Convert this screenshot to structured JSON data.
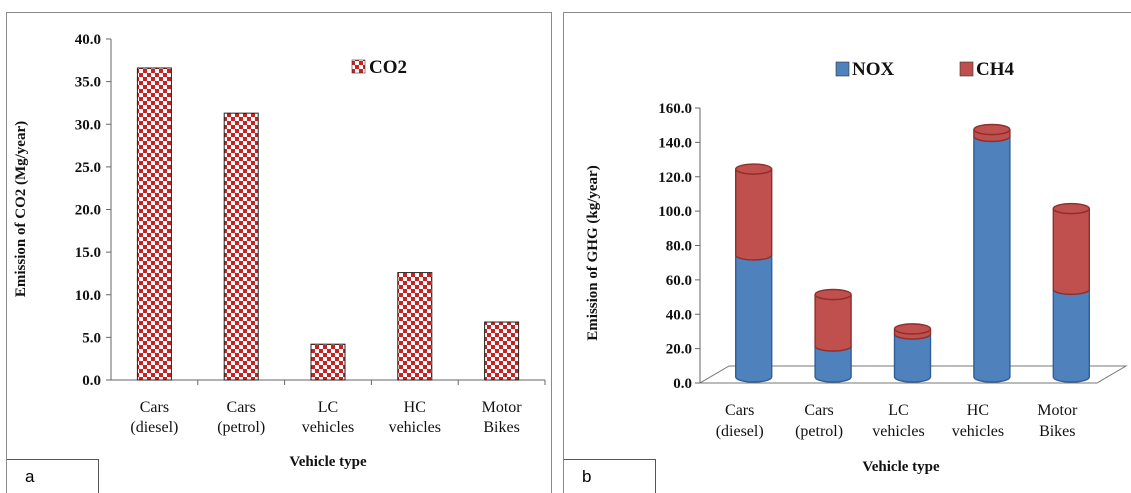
{
  "colors": {
    "co2_check": "#cc1f1f",
    "nox": "#4f81bd",
    "nox_dark": "#2f5f96",
    "ch4": "#c0504d",
    "ch4_dark": "#8e2f2c"
  },
  "panels": {
    "a": {
      "label": "a"
    },
    "b": {
      "label": "b"
    }
  },
  "chart_data": [
    {
      "type": "bar",
      "categories": [
        [
          "Cars",
          "(diesel)"
        ],
        [
          "Cars",
          "(petrol)"
        ],
        [
          "LC",
          "vehicles"
        ],
        [
          "HC",
          "vehicles"
        ],
        [
          "Motor",
          "Bikes"
        ]
      ],
      "series": [
        {
          "name": "CO2",
          "values": [
            36.6,
            31.3,
            4.2,
            12.6,
            6.8
          ]
        }
      ],
      "xlabel": "Vehicle type",
      "ylabel": "Emission of CO2 (Mg/year)",
      "ylim": [
        0,
        40
      ],
      "yticks": [
        "0.0",
        "5.0",
        "10.0",
        "15.0",
        "20.0",
        "25.0",
        "30.0",
        "35.0",
        "40.0"
      ],
      "grid": false,
      "legend": "top-right"
    },
    {
      "type": "bar",
      "stacked": true,
      "style": "3d-cylinder",
      "categories": [
        [
          "Cars",
          "(diesel)"
        ],
        [
          "Cars",
          "(petrol)"
        ],
        [
          "LC",
          "vehicles"
        ],
        [
          "HC",
          "vehicles"
        ],
        [
          "Motor",
          "Bikes"
        ]
      ],
      "series": [
        {
          "name": "NOX",
          "values": [
            71,
            18,
            25,
            140,
            51
          ]
        },
        {
          "name": "CH4",
          "values": [
            50,
            30,
            3,
            4,
            47
          ]
        }
      ],
      "xlabel": "Vehicle type",
      "ylabel": "Emission of GHG (kg/year)",
      "ylim": [
        0,
        160
      ],
      "yticks": [
        "0.0",
        "20.0",
        "40.0",
        "60.0",
        "80.0",
        "100.0",
        "120.0",
        "140.0",
        "160.0"
      ],
      "grid": false,
      "legend": "top"
    }
  ]
}
